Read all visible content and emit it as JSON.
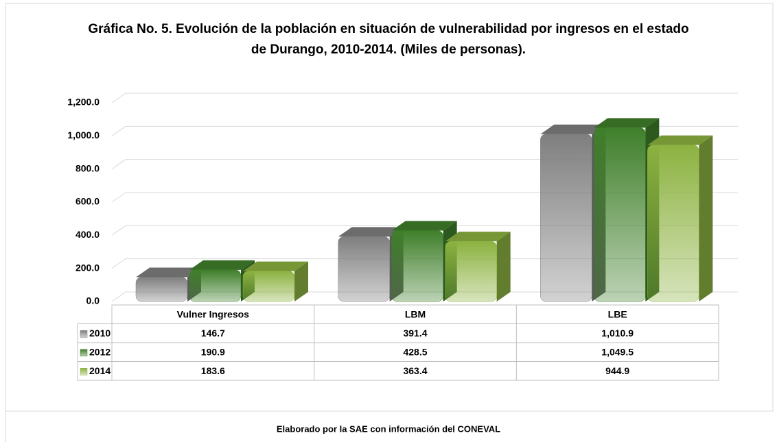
{
  "chart_data": {
    "type": "bar3d",
    "title": "Gráfica No. 5. Evolución de la población en situación de vulnerabilidad por ingresos en el estado de Durango, 2010-2014. (Miles de personas).",
    "source": "Elaborado por la SAE con información del CONEVAL",
    "categories": [
      "Vulner Ingresos",
      "LBM",
      "LBE"
    ],
    "series": [
      {
        "name": "2010",
        "color": "#7f7f7f",
        "values": [
          146.7,
          391.4,
          1010.9
        ],
        "value_labels": [
          "146.7",
          "391.4",
          "1,010.9"
        ]
      },
      {
        "name": "2012",
        "color": "#3f7f2a",
        "values": [
          190.9,
          428.5,
          1049.5
        ],
        "value_labels": [
          "190.9",
          "428.5",
          "1,049.5"
        ]
      },
      {
        "name": "2014",
        "color": "#8cb240",
        "values": [
          183.6,
          363.4,
          944.9
        ],
        "value_labels": [
          "183.6",
          "363.4",
          "944.9"
        ]
      }
    ],
    "ylim": [
      0,
      1200
    ],
    "yticks": [
      {
        "value": 0,
        "label": "0.0"
      },
      {
        "value": 200,
        "label": "200.0"
      },
      {
        "value": 400,
        "label": "400.0"
      },
      {
        "value": 600,
        "label": "600.0"
      },
      {
        "value": 800,
        "label": "800.0"
      },
      {
        "value": 1000,
        "label": "1,000.0"
      },
      {
        "value": 1200,
        "label": "1,200.0"
      }
    ],
    "grid": true
  }
}
